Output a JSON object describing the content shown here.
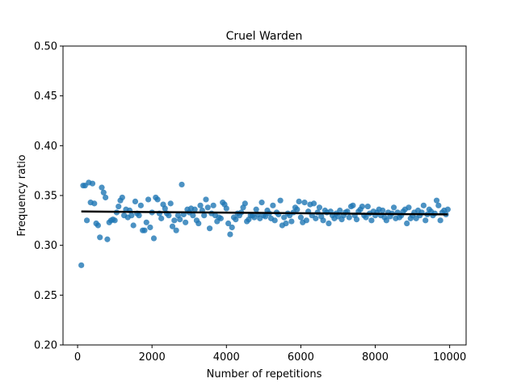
{
  "chart_data": {
    "type": "scatter",
    "title": "Cruel Warden",
    "xlabel": "Number of repetitions",
    "ylabel": "Frequency ratio",
    "color": "#1f77b4",
    "x": [
      100,
      150,
      200,
      250,
      300,
      350,
      400,
      450,
      500,
      550,
      600,
      650,
      700,
      750,
      800,
      850,
      900,
      950,
      1000,
      1050,
      1100,
      1150,
      1200,
      1250,
      1300,
      1350,
      1400,
      1450,
      1500,
      1550,
      1600,
      1650,
      1700,
      1750,
      1800,
      1850,
      1900,
      1950,
      2000,
      2050,
      2100,
      2150,
      2200,
      2250,
      2300,
      2350,
      2400,
      2450,
      2500,
      2550,
      2600,
      2650,
      2700,
      2750,
      2800,
      2850,
      2900,
      2950,
      3000,
      3050,
      3100,
      3150,
      3200,
      3250,
      3300,
      3350,
      3400,
      3450,
      3500,
      3550,
      3600,
      3650,
      3700,
      3750,
      3800,
      3850,
      3900,
      3950,
      4000,
      4050,
      4100,
      4150,
      4200,
      4250,
      4300,
      4350,
      4400,
      4450,
      4500,
      4550,
      4600,
      4650,
      4700,
      4750,
      4800,
      4850,
      4900,
      4950,
      5000,
      5050,
      5100,
      5150,
      5200,
      5250,
      5300,
      5350,
      5400,
      5450,
      5500,
      5550,
      5600,
      5650,
      5700,
      5750,
      5800,
      5850,
      5900,
      5950,
      6000,
      6050,
      6100,
      6150,
      6200,
      6250,
      6300,
      6350,
      6400,
      6450,
      6500,
      6550,
      6600,
      6650,
      6700,
      6750,
      6800,
      6850,
      6900,
      6950,
      7000,
      7050,
      7100,
      7150,
      7200,
      7250,
      7300,
      7350,
      7400,
      7450,
      7500,
      7550,
      7600,
      7650,
      7700,
      7750,
      7800,
      7850,
      7900,
      7950,
      8000,
      8050,
      8100,
      8150,
      8200,
      8250,
      8300,
      8350,
      8400,
      8450,
      8500,
      8550,
      8600,
      8650,
      8700,
      8750,
      8800,
      8850,
      8900,
      8950,
      9000,
      9050,
      9100,
      9150,
      9200,
      9250,
      9300,
      9350,
      9400,
      9450,
      9500,
      9550,
      9600,
      9650,
      9700,
      9750,
      9800,
      9850,
      9900,
      9950
    ],
    "values": [
      0.28,
      0.36,
      0.36,
      0.325,
      0.363,
      0.343,
      0.362,
      0.342,
      0.322,
      0.32,
      0.308,
      0.358,
      0.353,
      0.348,
      0.306,
      0.323,
      0.325,
      0.326,
      0.325,
      0.333,
      0.339,
      0.345,
      0.348,
      0.33,
      0.336,
      0.328,
      0.335,
      0.33,
      0.32,
      0.344,
      0.332,
      0.33,
      0.34,
      0.315,
      0.315,
      0.323,
      0.346,
      0.318,
      0.333,
      0.307,
      0.348,
      0.346,
      0.332,
      0.327,
      0.341,
      0.337,
      0.332,
      0.33,
      0.342,
      0.319,
      0.325,
      0.315,
      0.33,
      0.326,
      0.361,
      0.331,
      0.323,
      0.336,
      0.333,
      0.337,
      0.33,
      0.336,
      0.325,
      0.322,
      0.34,
      0.335,
      0.33,
      0.346,
      0.338,
      0.317,
      0.332,
      0.34,
      0.33,
      0.324,
      0.328,
      0.327,
      0.343,
      0.341,
      0.337,
      0.322,
      0.311,
      0.318,
      0.328,
      0.326,
      0.332,
      0.33,
      0.333,
      0.338,
      0.342,
      0.324,
      0.326,
      0.33,
      0.33,
      0.328,
      0.336,
      0.331,
      0.327,
      0.343,
      0.33,
      0.329,
      0.335,
      0.332,
      0.327,
      0.34,
      0.325,
      0.333,
      0.331,
      0.345,
      0.32,
      0.328,
      0.322,
      0.332,
      0.33,
      0.324,
      0.333,
      0.338,
      0.336,
      0.344,
      0.328,
      0.323,
      0.343,
      0.325,
      0.334,
      0.341,
      0.33,
      0.342,
      0.327,
      0.333,
      0.338,
      0.329,
      0.325,
      0.335,
      0.333,
      0.322,
      0.334,
      0.33,
      0.327,
      0.332,
      0.329,
      0.335,
      0.326,
      0.33,
      0.333,
      0.334,
      0.328,
      0.339,
      0.34,
      0.33,
      0.326,
      0.334,
      0.336,
      0.339,
      0.33,
      0.328,
      0.339,
      0.332,
      0.325,
      0.334,
      0.33,
      0.333,
      0.336,
      0.33,
      0.335,
      0.328,
      0.325,
      0.333,
      0.329,
      0.332,
      0.338,
      0.327,
      0.333,
      0.328,
      0.33,
      0.334,
      0.336,
      0.322,
      0.338,
      0.327,
      0.33,
      0.333,
      0.327,
      0.335,
      0.33,
      0.333,
      0.34,
      0.325,
      0.331,
      0.336,
      0.334,
      0.33,
      0.332,
      0.345,
      0.34,
      0.325,
      0.333,
      0.335,
      0.331,
      0.336
    ],
    "fit": {
      "x": [
        100,
        9950
      ],
      "values": [
        0.334,
        0.331
      ],
      "color": "#000000"
    },
    "xlim": [
      -392,
      10442
    ],
    "xticks": [
      0,
      2000,
      4000,
      6000,
      8000,
      10000
    ],
    "ylim": [
      0.2,
      0.5
    ],
    "yticks": [
      {
        "value": 0.2,
        "label": "0.20"
      },
      0.25,
      {
        "value": 0.3,
        "label": "0.30"
      },
      0.35,
      {
        "value": 0.4,
        "label": "0.40"
      },
      0.45,
      {
        "value": 0.5,
        "label": "0.50"
      }
    ]
  }
}
